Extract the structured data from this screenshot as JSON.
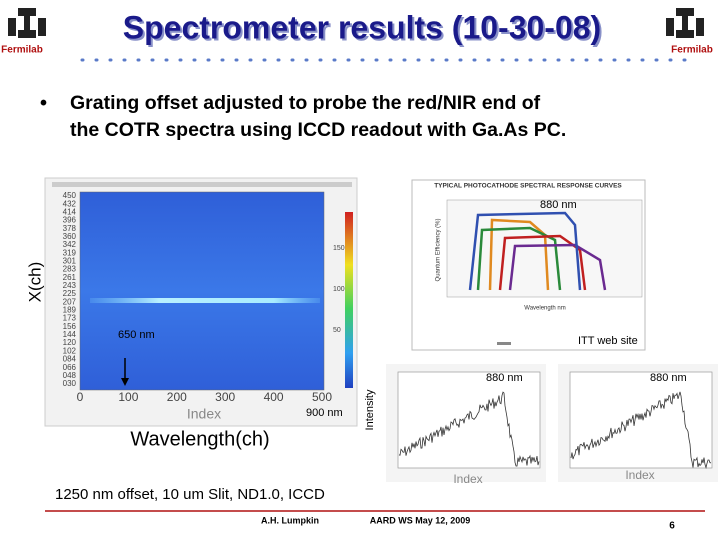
{
  "header": {
    "title": "Spectrometer results (10-30-08)",
    "logo_left": "Fermilab",
    "logo_right": "Fermilab"
  },
  "bullet": [
    "Grating offset adjusted to probe the red/NIR end of",
    "the COTR spectra using ICCD readout with Ga.As PC."
  ],
  "image": {
    "y_axis_label": "X(ch)",
    "x_axis_label": "Wavelength(ch)",
    "x_title": "Index",
    "x_ticks": [
      "0",
      "100",
      "200",
      "300",
      "400",
      "500"
    ],
    "y_ticks": [
      "450",
      "432",
      "414",
      "396",
      "378",
      "360",
      "342",
      "319",
      "301",
      "283",
      "261",
      "243",
      "225",
      "207",
      "189",
      "173",
      "156",
      "144",
      "120",
      "102",
      "084",
      "066",
      "048",
      "030"
    ],
    "colorbar_ticks": [
      "150",
      "100",
      "50"
    ],
    "annotations": [
      "650 nm",
      "900 nm"
    ]
  },
  "response_curves": {
    "title": "TYPICAL PHOTOCATHODE SPECTRAL RESPONSE CURVES",
    "x_label": "Wavelength nm",
    "y_label": "Quantum Efficiency (%)",
    "annotation": "880 nm",
    "source": "ITT web site"
  },
  "profiles": {
    "y_label": "Intensity",
    "plots": [
      {
        "annotation": "880 nm",
        "x_title": "Index"
      },
      {
        "annotation": "880 nm",
        "x_title": "Index"
      }
    ]
  },
  "caption": "1250 nm offset, 10 um Slit, ND1.0, ICCD",
  "footer": {
    "author": "A.H. Lumpkin",
    "event": "AARD WS May 12, 2009",
    "page": "6"
  }
}
